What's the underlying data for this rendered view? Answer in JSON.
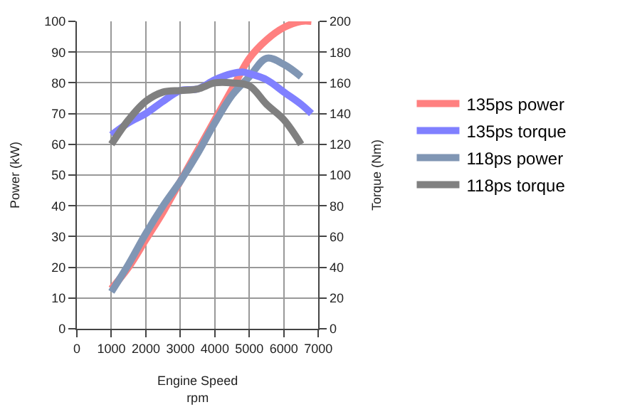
{
  "chart_data": {
    "type": "line",
    "xlabel": "Engine Speed\nrpm",
    "ylabel": "Power (kW)",
    "y2label": "Torque (Nm)",
    "xlim": [
      0,
      7000
    ],
    "xticks": [
      0,
      1000,
      2000,
      3000,
      4000,
      5000,
      6000,
      7000
    ],
    "ylim": [
      0,
      100
    ],
    "yticks": [
      0,
      10,
      20,
      30,
      40,
      50,
      60,
      70,
      80,
      90,
      100
    ],
    "y2lim": [
      0,
      200
    ],
    "y2ticks": [
      0,
      20,
      40,
      60,
      80,
      100,
      120,
      140,
      160,
      180,
      200
    ],
    "grid": true,
    "legend": "right",
    "marker": "none",
    "line_style": "solid",
    "series": [
      {
        "name": "135ps power",
        "color": "#ff8080",
        "x": [
          1000,
          1500,
          2000,
          2500,
          3000,
          3500,
          4000,
          4500,
          5000,
          5500,
          6000,
          6500,
          6800
        ],
        "values": [
          13,
          20,
          29,
          38,
          48,
          58,
          68,
          78,
          88,
          94,
          98,
          100,
          100
        ]
      },
      {
        "name": "135ps torque",
        "color": "#8080ff",
        "axis": "y2",
        "x": [
          1000,
          1500,
          2000,
          2500,
          3000,
          3500,
          4000,
          4500,
          4800,
          5000,
          5500,
          6000,
          6500,
          6800
        ],
        "values": [
          126,
          134,
          140,
          148,
          155,
          156,
          162,
          166,
          167,
          166,
          162,
          154,
          146,
          140
        ]
      },
      {
        "name": "118ps power",
        "color": "#8096b4",
        "x": [
          1000,
          1500,
          2000,
          2500,
          3000,
          3500,
          4000,
          4500,
          5000,
          5500,
          6000,
          6500
        ],
        "values": [
          12,
          21,
          31,
          40,
          48,
          57,
          67,
          76,
          82,
          88,
          86,
          82
        ]
      },
      {
        "name": "118ps torque",
        "color": "#808080",
        "axis": "y2",
        "x": [
          1000,
          1500,
          2000,
          2500,
          3000,
          3500,
          4000,
          4500,
          5000,
          5500,
          6000,
          6500
        ],
        "values": [
          120,
          136,
          148,
          154,
          155,
          156,
          160,
          160,
          158,
          146,
          136,
          120
        ]
      }
    ]
  }
}
